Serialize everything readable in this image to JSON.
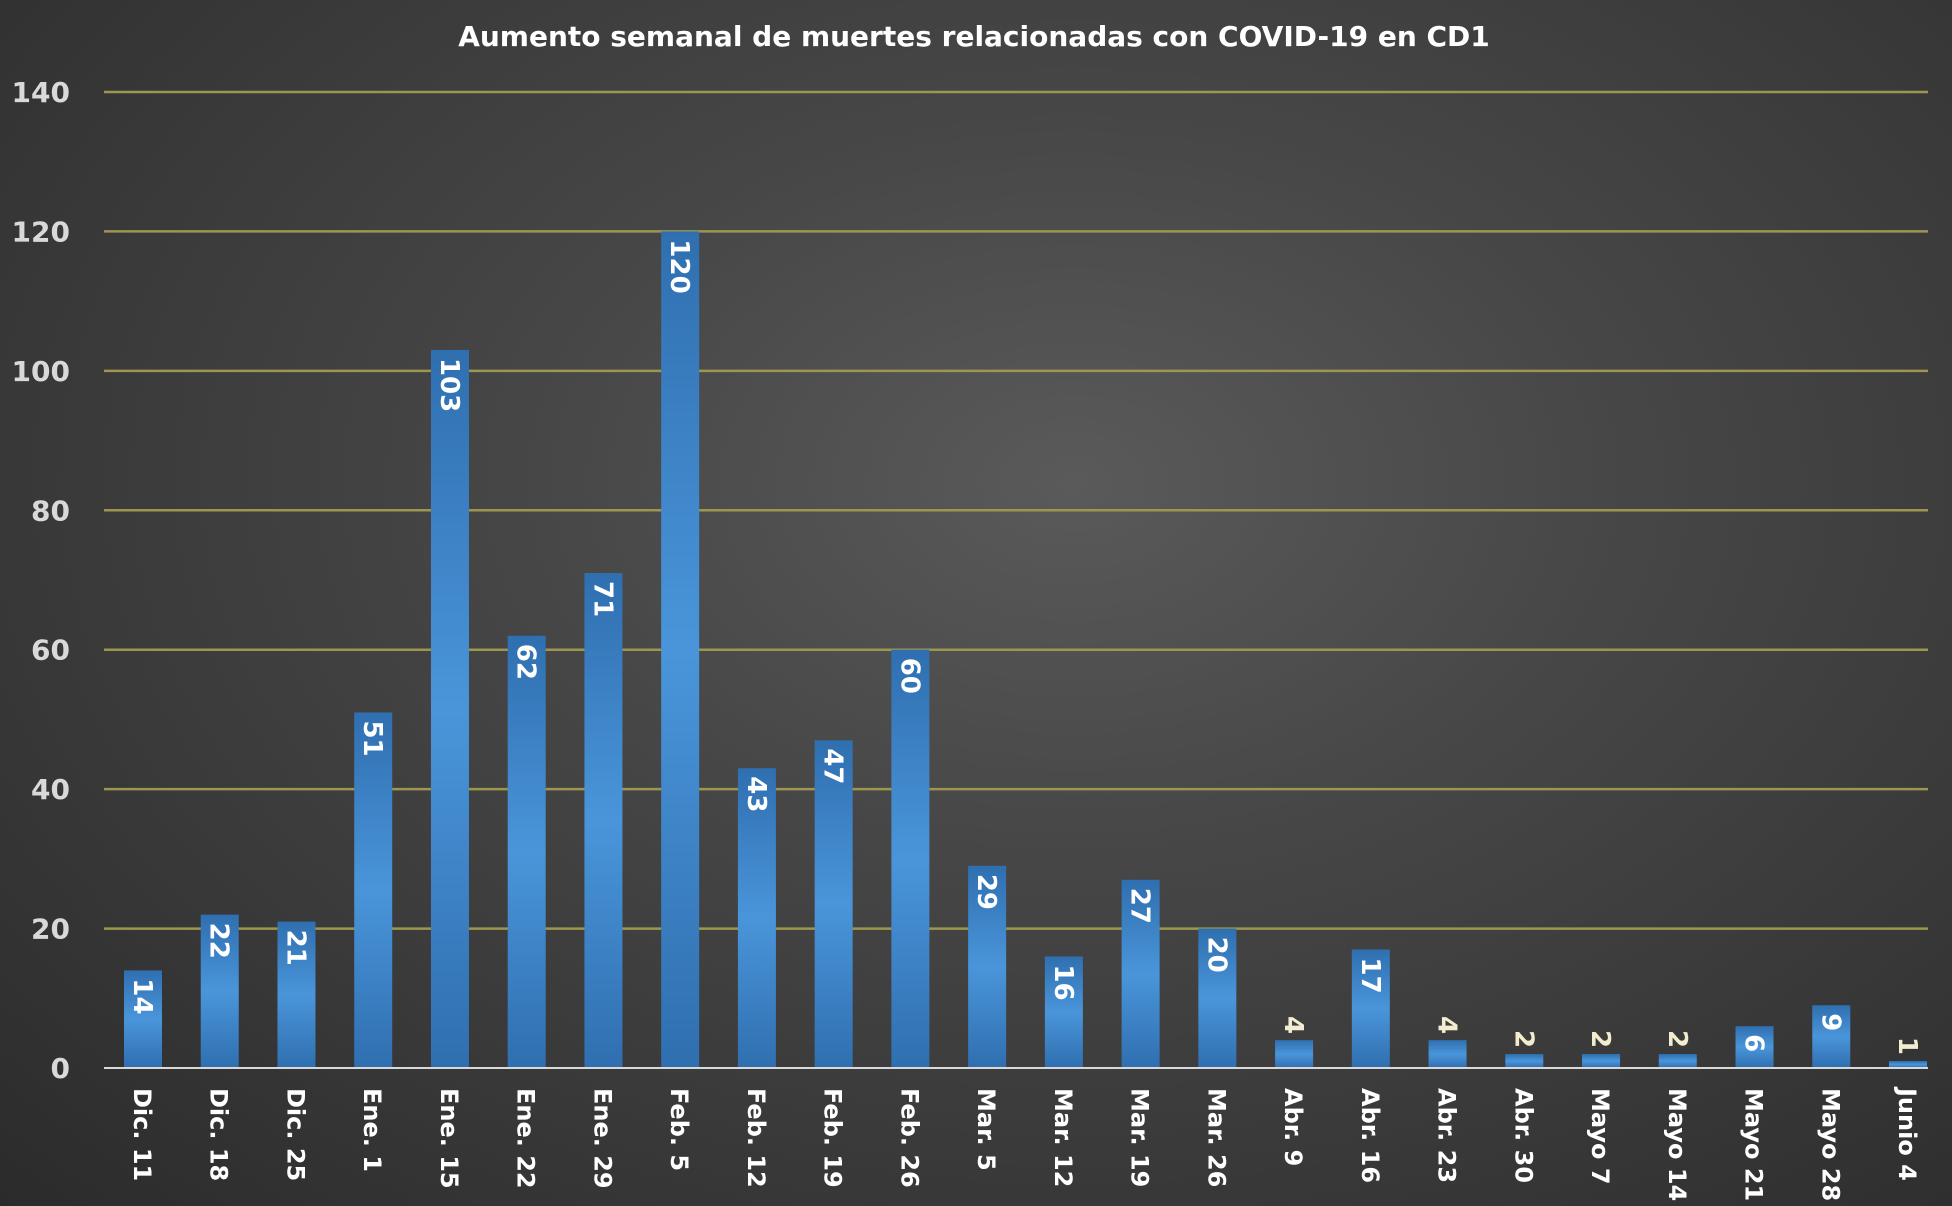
{
  "chart_data": {
    "type": "bar",
    "title": "Aumento semanal de muertes relacionadas con COVID-19 en CD1",
    "xlabel": "",
    "ylabel": "",
    "ylim": [
      0,
      140
    ],
    "yticks": [
      0,
      20,
      40,
      60,
      80,
      100,
      120,
      140
    ],
    "grid": true,
    "legend": "none",
    "categories": [
      "Dic. 11",
      "Dic. 18",
      "Dic. 25",
      "Ene. 1",
      "Ene. 15",
      "Ene. 22",
      "Ene. 29",
      "Feb. 5",
      "Feb. 12",
      "Feb. 19",
      "Feb. 26",
      "Mar. 5",
      "Mar. 12",
      "Mar. 19",
      "Mar. 26",
      "Abr. 9",
      "Abr. 16",
      "Abr. 23",
      "Abr. 30",
      "Mayo 7",
      "Mayo 14",
      "Mayo 21",
      "Mayo 28",
      "Junio 4"
    ],
    "values": [
      14,
      22,
      21,
      51,
      103,
      62,
      71,
      120,
      43,
      47,
      60,
      29,
      16,
      27,
      20,
      4,
      17,
      4,
      2,
      2,
      2,
      6,
      9,
      1
    ],
    "colors": {
      "bar_edge": "#2a6aaa",
      "bar_center": "#4a94d8",
      "gridline": "#9c9651",
      "axis": "#d9d9d9"
    }
  }
}
